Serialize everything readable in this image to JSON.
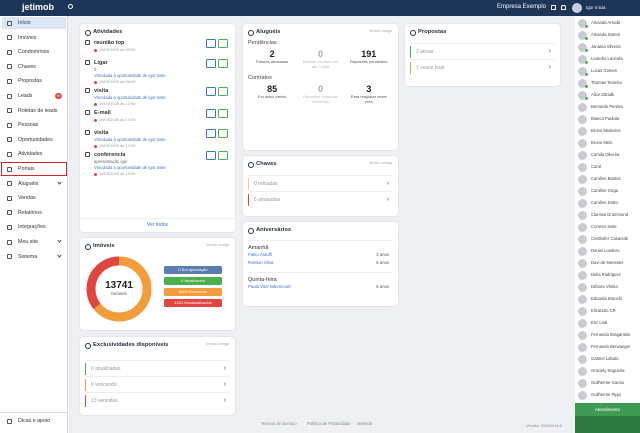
{
  "topbar": {
    "logo": "jetimob",
    "company": "Empresa Exemplo",
    "user": "Igor Inicia"
  },
  "sidebar": {
    "items": [
      {
        "label": "Início"
      },
      {
        "label": "Imóveis"
      },
      {
        "label": "Condomínios"
      },
      {
        "label": "Chaves"
      },
      {
        "label": "Propostas"
      },
      {
        "label": "Leads",
        "badge": "99"
      },
      {
        "label": "Roletas de leads"
      },
      {
        "label": "Pessoas"
      },
      {
        "label": "Oportunidades"
      },
      {
        "label": "Atividades"
      },
      {
        "label": "Portais"
      },
      {
        "label": "Aluguéis"
      },
      {
        "label": "Vendas"
      },
      {
        "label": "Relatórios"
      },
      {
        "label": "Integrações"
      },
      {
        "label": "Meu site"
      },
      {
        "label": "Sistema"
      }
    ],
    "footer": "Dicas e apoio"
  },
  "activities": {
    "title": "Atividades",
    "items": [
      {
        "name": "reunião top",
        "date": "19/03/2025 às 03:00"
      },
      {
        "name": "Ligar",
        "note": "0",
        "link": "Vinculada à oportunidade de igor teste",
        "date": "19/03/2025 às 06:00"
      },
      {
        "name": "visita",
        "link": "Vinculada à oportunidade de igor teste",
        "date": "19/03/2025 às 12:00"
      },
      {
        "name": "E-mail",
        "date": "19/03/2025 às 14:00"
      },
      {
        "name": "visita",
        "link": "Vinculada à oportunidade de igor teste",
        "date": "19/03/2025 às 17:00"
      },
      {
        "name": "conferencia",
        "note": "apresentação igor",
        "link": "Vinculada à oportunidade de igor teste",
        "date": "19/03/2025 às 19:00"
      }
    ],
    "more": "Ver todos"
  },
  "properties": {
    "title": "Imóveis",
    "version": "Versão antiga",
    "total": 13741,
    "total_label": "Imóveis",
    "legend": [
      {
        "value": 0,
        "label": "Em aprovação",
        "color": "#5b7db1"
      },
      {
        "value": 0,
        "label": "Atualizados",
        "color": "#4caf50"
      },
      {
        "value": 8820,
        "label": "Expirando",
        "color": "#f39c3c"
      },
      {
        "value": 4921,
        "label": "Desatualizados",
        "color": "#e0463f"
      }
    ]
  },
  "exclusives": {
    "title": "Exclusividades disponíveis",
    "version": "Versão antiga",
    "items": [
      {
        "label": "0 atualizadas",
        "color": "#4caf50"
      },
      {
        "label": "0 vencendo",
        "color": "#f39c3c"
      },
      {
        "label": "13 vencidas",
        "color": "#e0463f"
      }
    ]
  },
  "rentals": {
    "title": "Aluguéis",
    "version": "Versão antiga",
    "groups": [
      {
        "title": "Pendências",
        "stats": [
          {
            "value": "2",
            "label": "Faturas atrasadas"
          },
          {
            "value": "0",
            "label": "Boletos expiram em até 3 dias"
          },
          {
            "value": "191",
            "label": "Repasses pendentes"
          }
        ]
      },
      {
        "title": "Contratos",
        "stats": [
          {
            "value": "85",
            "label": "Em aviso prévio"
          },
          {
            "value": "0",
            "label": "Garantias locatícias vencendo"
          },
          {
            "value": "3",
            "label": "Para reajustar neste mês"
          }
        ]
      }
    ]
  },
  "keys": {
    "title": "Chaves",
    "version": "Versão antiga",
    "items": [
      {
        "label": "0 retiradas",
        "color": "#f5c98a"
      },
      {
        "label": "5 atrasadas",
        "color": "#e0463f"
      }
    ]
  },
  "birthdays": {
    "title": "Aniversários",
    "groups": [
      {
        "title": "Amanhã",
        "people": [
          {
            "name": "Fabio Arduffi",
            "years": "3 anos"
          },
          {
            "name": "Robson Silva",
            "years": "5 anos"
          }
        ]
      },
      {
        "title": "Quinta-feira",
        "people": [
          {
            "name": "Paula Vitor Bittencourt",
            "years": "5 anos"
          }
        ]
      }
    ]
  },
  "proposals": {
    "title": "Propostas",
    "items": [
      {
        "label": "2 ativas",
        "color": "#4caf50"
      },
      {
        "label": "1 vence hoje",
        "color": "#f39c3c"
      }
    ]
  },
  "users": {
    "names": [
      "Amanda Arruda",
      "Amanda Sartori",
      "Janaina Silveira",
      "Leandro Lacerda",
      "Lucas Gomes",
      "Thomas Teixeira",
      "Alice Zdradk",
      "Bernardo Pereira",
      "Bianca Paulata",
      "Bruno Medeiros",
      "Bruno Melo",
      "Camila Oliveira",
      "Carol",
      "Caroline Bastos",
      "Caroline Goga",
      "Caroline Dotto",
      "Clarissa Drummond",
      "Corretor teste",
      "Cristhofer Casanotti",
      "Daniel Londero",
      "Davi de Meneses",
      "Delia Rodriguez",
      "Débora Vitória",
      "Eduarda Branchi",
      "Elizandro CR",
      "Eric Leal",
      "Fernanda Bragantolo",
      "Fernando Berwanger",
      "Gabriel Lobato",
      "Graciely Nogueira",
      "Guilherme Garcia",
      "Guilherme Pippi"
    ],
    "footer": "Atendimento"
  },
  "footer": {
    "links": [
      "Termos de Serviço",
      "Política de Privacidade",
      "Jetimob"
    ],
    "version": "Versão: 20250414-0"
  }
}
